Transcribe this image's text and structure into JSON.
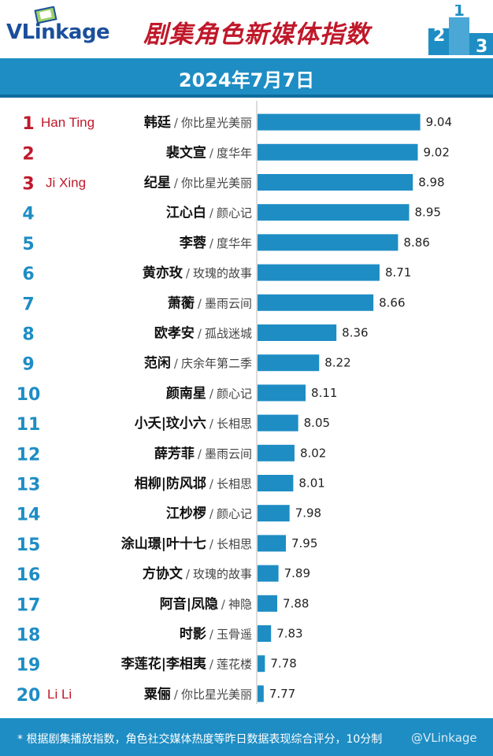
{
  "header": {
    "logo_text": "VLinkage",
    "title": "剧集角色新媒体指数",
    "date": "2024年7月7日",
    "podium_digits": [
      "2",
      "1",
      "3"
    ]
  },
  "footer": {
    "note": "* 根据剧集播放指数，角色社交媒体热度等昨日数据表现综合评分，10分制",
    "watermark": "@VLinkage"
  },
  "colors": {
    "bar": "#1e8dc4",
    "rank_top3": "#c0182a",
    "rank_other": "#1e8dc4",
    "annotation": "#c0182a",
    "band": "#1e8dc4"
  },
  "chart_data": {
    "type": "bar",
    "orientation": "horizontal",
    "ranks": [
      1,
      2,
      3,
      4,
      5,
      6,
      7,
      8,
      9,
      10,
      11,
      12,
      13,
      14,
      15,
      16,
      17,
      18,
      19,
      20
    ],
    "categories": [
      "韩廷",
      "裴文宣",
      "纪星",
      "江心白",
      "李蓉",
      "黄亦玫",
      "萧蘅",
      "欧孝安",
      "范闲",
      "颜南星",
      "小夭|玟小六",
      "薛芳菲",
      "相柳|防风邶",
      "江杪椤",
      "涂山璟|叶十七",
      "方协文",
      "阿音|凤隐",
      "时影",
      "李莲花|李相夷",
      "粟俪"
    ],
    "dramas": [
      "你比星光美丽",
      "度华年",
      "你比星光美丽",
      "颜心记",
      "度华年",
      "玫瑰的故事",
      "墨雨云间",
      "孤战迷城",
      "庆余年第二季",
      "颜心记",
      "长相思",
      "墨雨云间",
      "长相思",
      "颜心记",
      "长相思",
      "玫瑰的故事",
      "神隐",
      "玉骨遥",
      "莲花楼",
      "你比星光美丽"
    ],
    "values": [
      9.04,
      9.02,
      8.98,
      8.95,
      8.86,
      8.71,
      8.66,
      8.36,
      8.22,
      8.11,
      8.05,
      8.02,
      8.01,
      7.98,
      7.95,
      7.89,
      7.88,
      7.83,
      7.78,
      7.77
    ],
    "value_labels": [
      "9.04",
      "9.02",
      "8.98",
      "8.95",
      "8.86",
      "8.71",
      "8.66",
      "8.36",
      "8.22",
      "8.11",
      "8.05",
      "8.02",
      "8.01",
      "7.98",
      "7.95",
      "7.89",
      "7.88",
      "7.83",
      "7.78",
      "7.77"
    ],
    "annotations": [
      {
        "rank": 1,
        "text": "Han Ting"
      },
      {
        "rank": 3,
        "text": "Ji Xing"
      },
      {
        "rank": 20,
        "text": "Li Li"
      }
    ],
    "xlim": [
      7.72,
      9.1
    ],
    "grid": false,
    "legend": "none"
  }
}
